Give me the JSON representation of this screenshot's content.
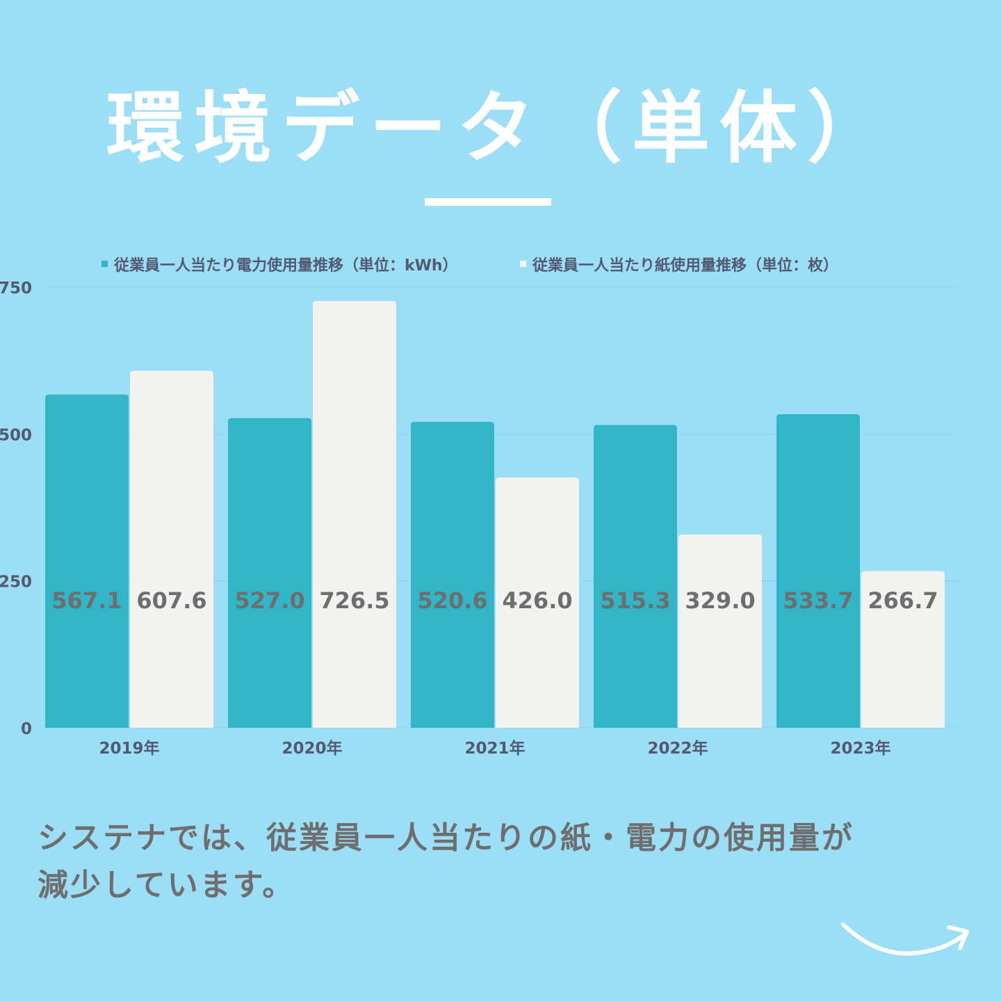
{
  "title": "環境データ（単体）",
  "caption": {
    "line1": "システナでは、従業員一人当たりの紙・電力の使用量が",
    "line2": "減少しています。"
  },
  "colors": {
    "background": "#9cdef6",
    "electricity": "#32b5c6",
    "paper": "#f2f2f0",
    "axis_text": "#525a72",
    "label_text": "#6e6e6e"
  },
  "icons": {
    "next": "curved-arrow-right-icon"
  },
  "chart_data": {
    "type": "bar",
    "categories": [
      "2019年",
      "2020年",
      "2021年",
      "2022年",
      "2023年"
    ],
    "series": [
      {
        "name": "従業員一人当たり電力使用量推移（単位：kWh）",
        "values": [
          567.1,
          527.0,
          520.6,
          515.3,
          533.7
        ],
        "labels": [
          "567.1",
          "527.0",
          "520.6",
          "515.3",
          "533.7"
        ]
      },
      {
        "name": "従業員一人当たり紙使用量推移（単位：枚）",
        "values": [
          607.6,
          726.5,
          426.0,
          329.0,
          266.7
        ],
        "labels": [
          "607.6",
          "726.5",
          "426.0",
          "329.0",
          "266.7"
        ]
      }
    ],
    "yticks": [
      "0",
      "250",
      "500",
      "750"
    ],
    "ylim": [
      0,
      750
    ],
    "grid": true,
    "legend": "top"
  }
}
